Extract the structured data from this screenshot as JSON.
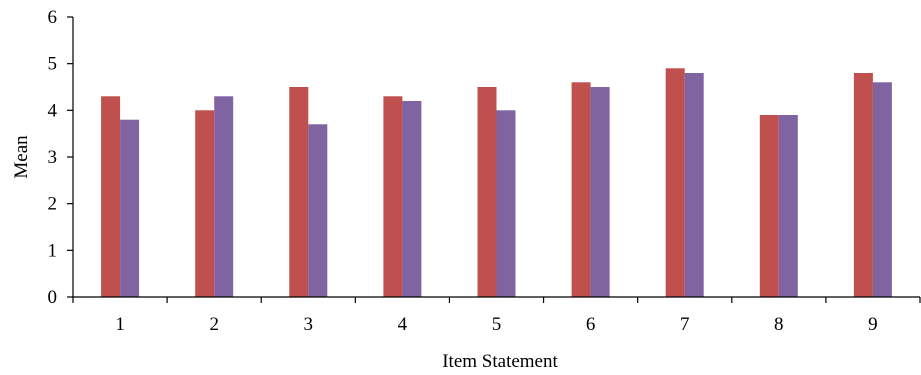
{
  "chart_data": {
    "type": "bar",
    "title": "",
    "xlabel": "Item Statement",
    "ylabel": "Mean",
    "categories": [
      "1",
      "2",
      "3",
      "4",
      "5",
      "6",
      "7",
      "8",
      "9"
    ],
    "ylim": [
      0,
      6
    ],
    "yticks": [
      "0",
      "1",
      "2",
      "3",
      "4",
      "5",
      "6"
    ],
    "grid": false,
    "legend": "none",
    "series": [
      {
        "color": "#c0504d",
        "values": [
          4.3,
          4.0,
          4.5,
          4.3,
          4.5,
          4.6,
          4.9,
          3.9,
          4.8
        ]
      },
      {
        "color": "#8064a2",
        "values": [
          3.8,
          4.3,
          3.7,
          4.2,
          4.0,
          4.5,
          4.8,
          3.9,
          4.6
        ]
      }
    ]
  }
}
